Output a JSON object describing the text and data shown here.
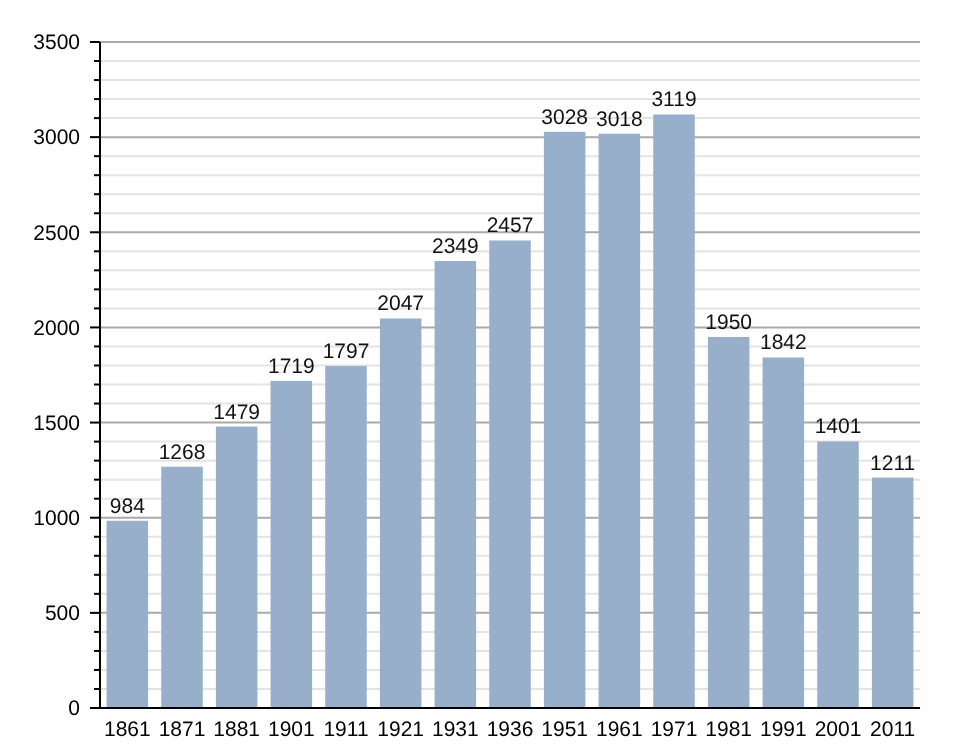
{
  "chart_data": {
    "type": "bar",
    "categories": [
      "1861",
      "1871",
      "1881",
      "1901",
      "1911",
      "1921",
      "1931",
      "1936",
      "1951",
      "1961",
      "1971",
      "1981",
      "1991",
      "2001",
      "2011"
    ],
    "values": [
      984,
      1268,
      1479,
      1719,
      1797,
      2047,
      2349,
      2457,
      3028,
      3018,
      3119,
      1950,
      1842,
      1401,
      1211
    ],
    "color": "#97afcb",
    "ylim": [
      0,
      3500
    ],
    "yticks": [
      0,
      {
        "value": 100,
        "label": null
      },
      {
        "value": 200,
        "label": null
      },
      {
        "value": 300,
        "label": null
      },
      {
        "value": 400,
        "label": null
      },
      500,
      {
        "value": 600,
        "label": null
      },
      {
        "value": 700,
        "label": null
      },
      {
        "value": 800,
        "label": null
      },
      {
        "value": 900,
        "label": null
      },
      1000,
      {
        "value": 1100,
        "label": null
      },
      {
        "value": 1200,
        "label": null
      },
      {
        "value": 1300,
        "label": null
      },
      {
        "value": 1400,
        "label": null
      },
      1500,
      {
        "value": 1600,
        "label": null
      },
      {
        "value": 1700,
        "label": null
      },
      {
        "value": 1800,
        "label": null
      },
      {
        "value": 1900,
        "label": null
      },
      2000,
      {
        "value": 2100,
        "label": null
      },
      {
        "value": 2200,
        "label": null
      },
      {
        "value": 2300,
        "label": null
      },
      {
        "value": 2400,
        "label": null
      },
      2500,
      {
        "value": 2600,
        "label": null
      },
      {
        "value": 2700,
        "label": null
      },
      {
        "value": 2800,
        "label": null
      },
      {
        "value": 2900,
        "label": null
      },
      3000,
      {
        "value": 3100,
        "label": null
      },
      {
        "value": 3200,
        "label": null
      },
      {
        "value": 3300,
        "label": null
      },
      {
        "value": 3400,
        "label": null
      },
      3500
    ],
    "grid": "y",
    "data_labels": true
  }
}
